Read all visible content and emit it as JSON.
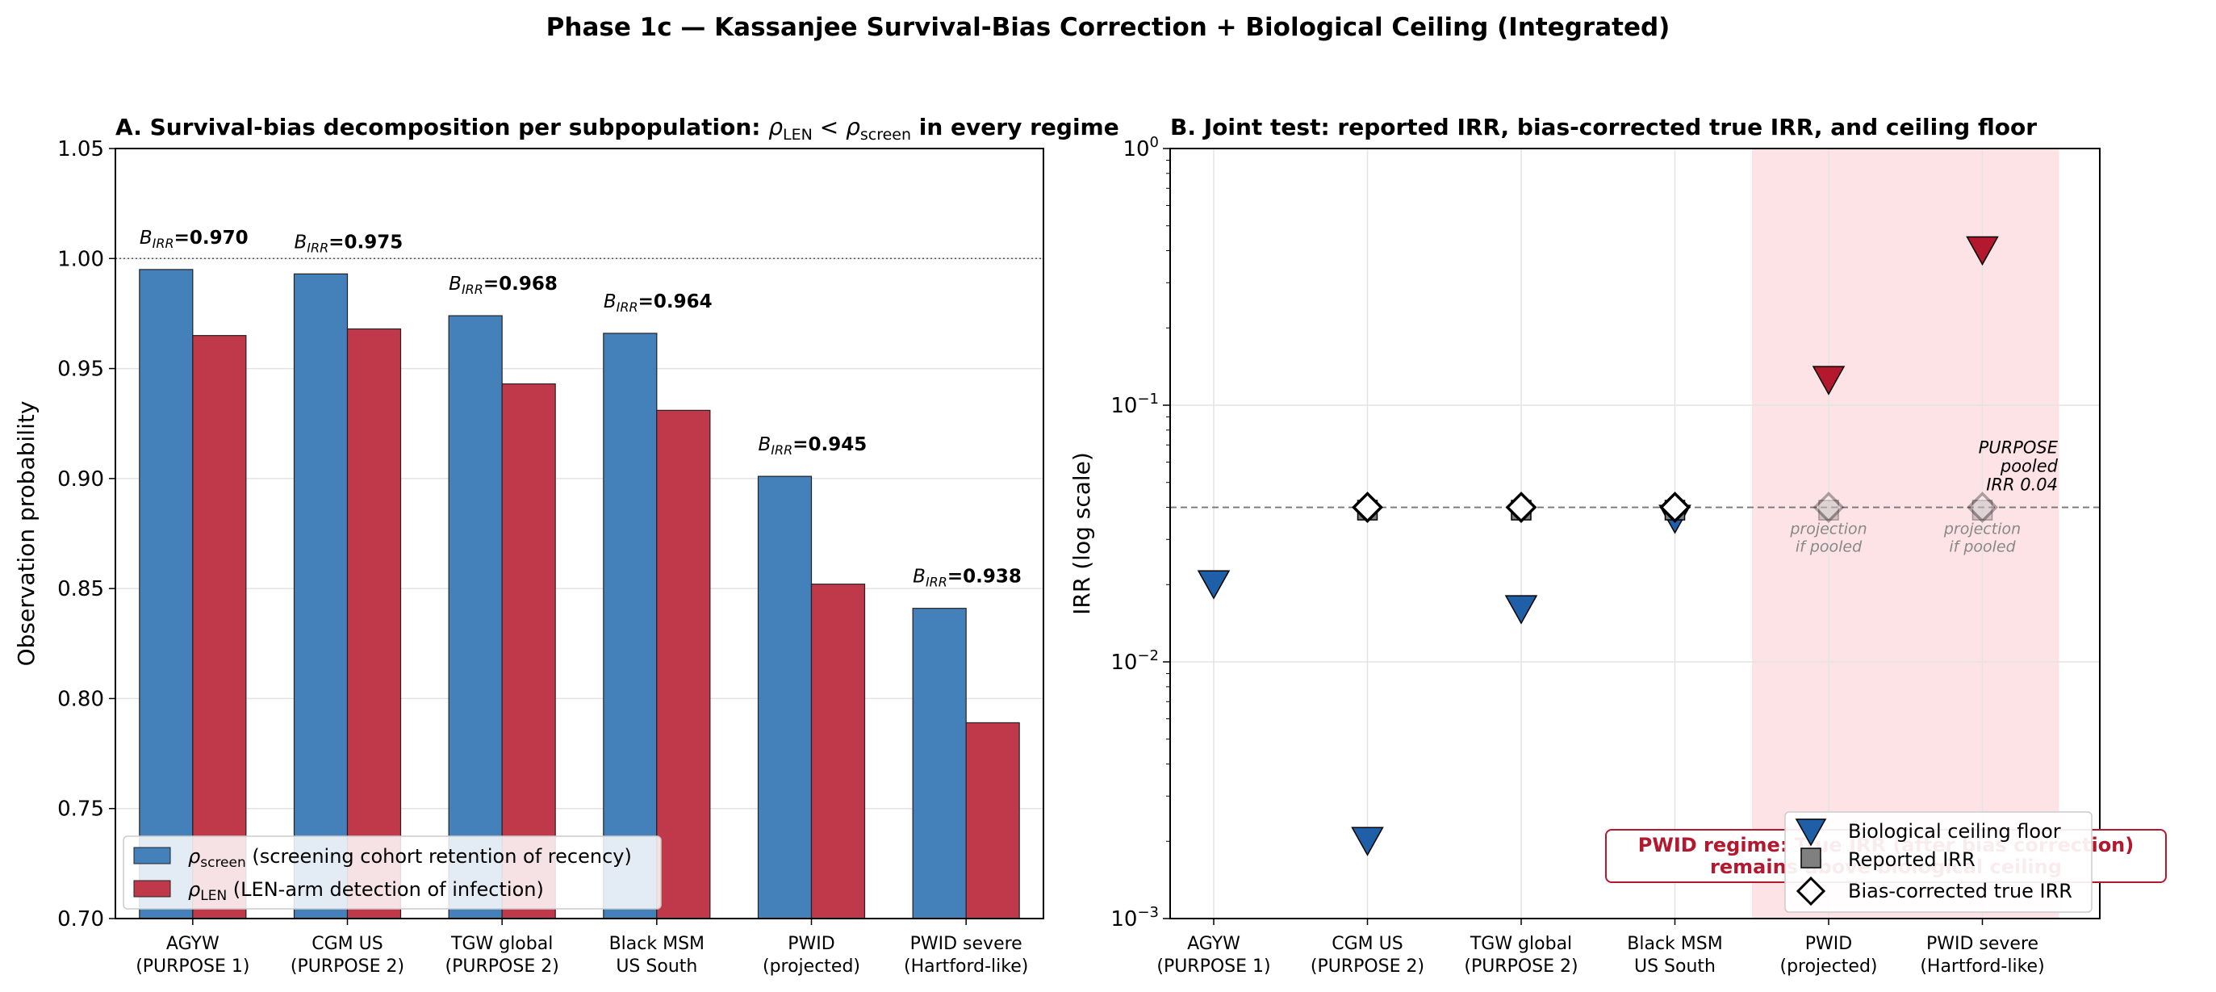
{
  "figure": {
    "suptitle": "Phase 1c — Kassanjee Survival-Bias Correction + Biological Ceiling (Integrated)"
  },
  "chart_data": [
    {
      "type": "bar",
      "title_prefix": "A. Survival-bias decomposition per subpopulation: ",
      "title_math": "ρLEN < ρscreen",
      "title_suffix": " in every regime",
      "ylabel": "Observation probability",
      "xlabel": "",
      "ylim": [
        0.7,
        1.05
      ],
      "yticks": [
        "0.70",
        "0.75",
        "0.80",
        "0.85",
        "0.90",
        "0.95",
        "1.00",
        "1.05"
      ],
      "reference_line": 1.0,
      "grid": true,
      "categories": [
        "AGYW\n(PURPOSE 1)",
        "CGM US\n(PURPOSE 2)",
        "TGW global\n(PURPOSE 2)",
        "Black MSM\nUS South",
        "PWID\n(projected)",
        "PWID severe\n(Hartford-like)"
      ],
      "series": [
        {
          "name": "ρscreen (screening cohort retention of recency)",
          "color": "#4480b9",
          "values": [
            0.995,
            0.993,
            0.974,
            0.966,
            0.901,
            0.841
          ]
        },
        {
          "name": "ρLEN (LEN-arm detection of infection)",
          "color": "#c0394b",
          "values": [
            0.965,
            0.968,
            0.943,
            0.931,
            0.852,
            0.789
          ]
        }
      ],
      "annotations": [
        {
          "label": "BIRR=",
          "value": "0.970"
        },
        {
          "label": "BIRR=",
          "value": "0.975"
        },
        {
          "label": "BIRR=",
          "value": "0.968"
        },
        {
          "label": "BIRR=",
          "value": "0.964"
        },
        {
          "label": "BIRR=",
          "value": "0.945"
        },
        {
          "label": "BIRR=",
          "value": "0.938"
        }
      ],
      "legend_placement": "lower-left"
    },
    {
      "type": "scatter",
      "title": "B. Joint test: reported IRR, bias-corrected true IRR, and ceiling floor",
      "ylabel": "IRR (log scale)",
      "xlabel": "",
      "yscale": "log",
      "ylim": [
        0.001,
        1
      ],
      "yticks": [
        "10^-3",
        "10^-2",
        "10^-1",
        "10^0"
      ],
      "grid": true,
      "categories": [
        "AGYW\n(PURPOSE 1)",
        "CGM US\n(PURPOSE 2)",
        "TGW global\n(PURPOSE 2)",
        "Black MSM\nUS South",
        "PWID\n(projected)",
        "PWID severe\n(Hartford-like)"
      ],
      "series": [
        {
          "name": "Biological ceiling floor",
          "marker": "triangle-down",
          "color": "#1f5fa8",
          "alt_color": "#b3182e",
          "values": [
            0.02,
            0.002,
            0.016,
            0.036,
            0.125,
            0.4
          ],
          "highlight": [
            false,
            false,
            false,
            false,
            true,
            true
          ]
        },
        {
          "name": "Reported IRR",
          "marker": "square",
          "color": "#808080",
          "values": [
            null,
            0.039,
            0.039,
            0.039,
            0.039,
            0.039
          ],
          "faded": [
            false,
            false,
            false,
            false,
            true,
            true
          ]
        },
        {
          "name": "Bias-corrected true IRR",
          "marker": "diamond",
          "color": "#ffffff",
          "values": [
            null,
            0.04,
            0.04,
            0.04,
            0.04,
            0.04
          ],
          "faded": [
            false,
            false,
            false,
            false,
            true,
            true
          ]
        }
      ],
      "hline": {
        "value": 0.04,
        "label": "PURPOSE\npooled\nIRR 0.04"
      },
      "shaded_region": {
        "from_category": "PWID\n(projected)",
        "to_category": "PWID severe\n(Hartford-like)",
        "color": "#fde3e6"
      },
      "projection_label": "projection\nif pooled",
      "regime_note": "PWID regime: True IRR (after bias correction)\nremains above biological ceiling",
      "legend_placement": "lower-right"
    }
  ]
}
